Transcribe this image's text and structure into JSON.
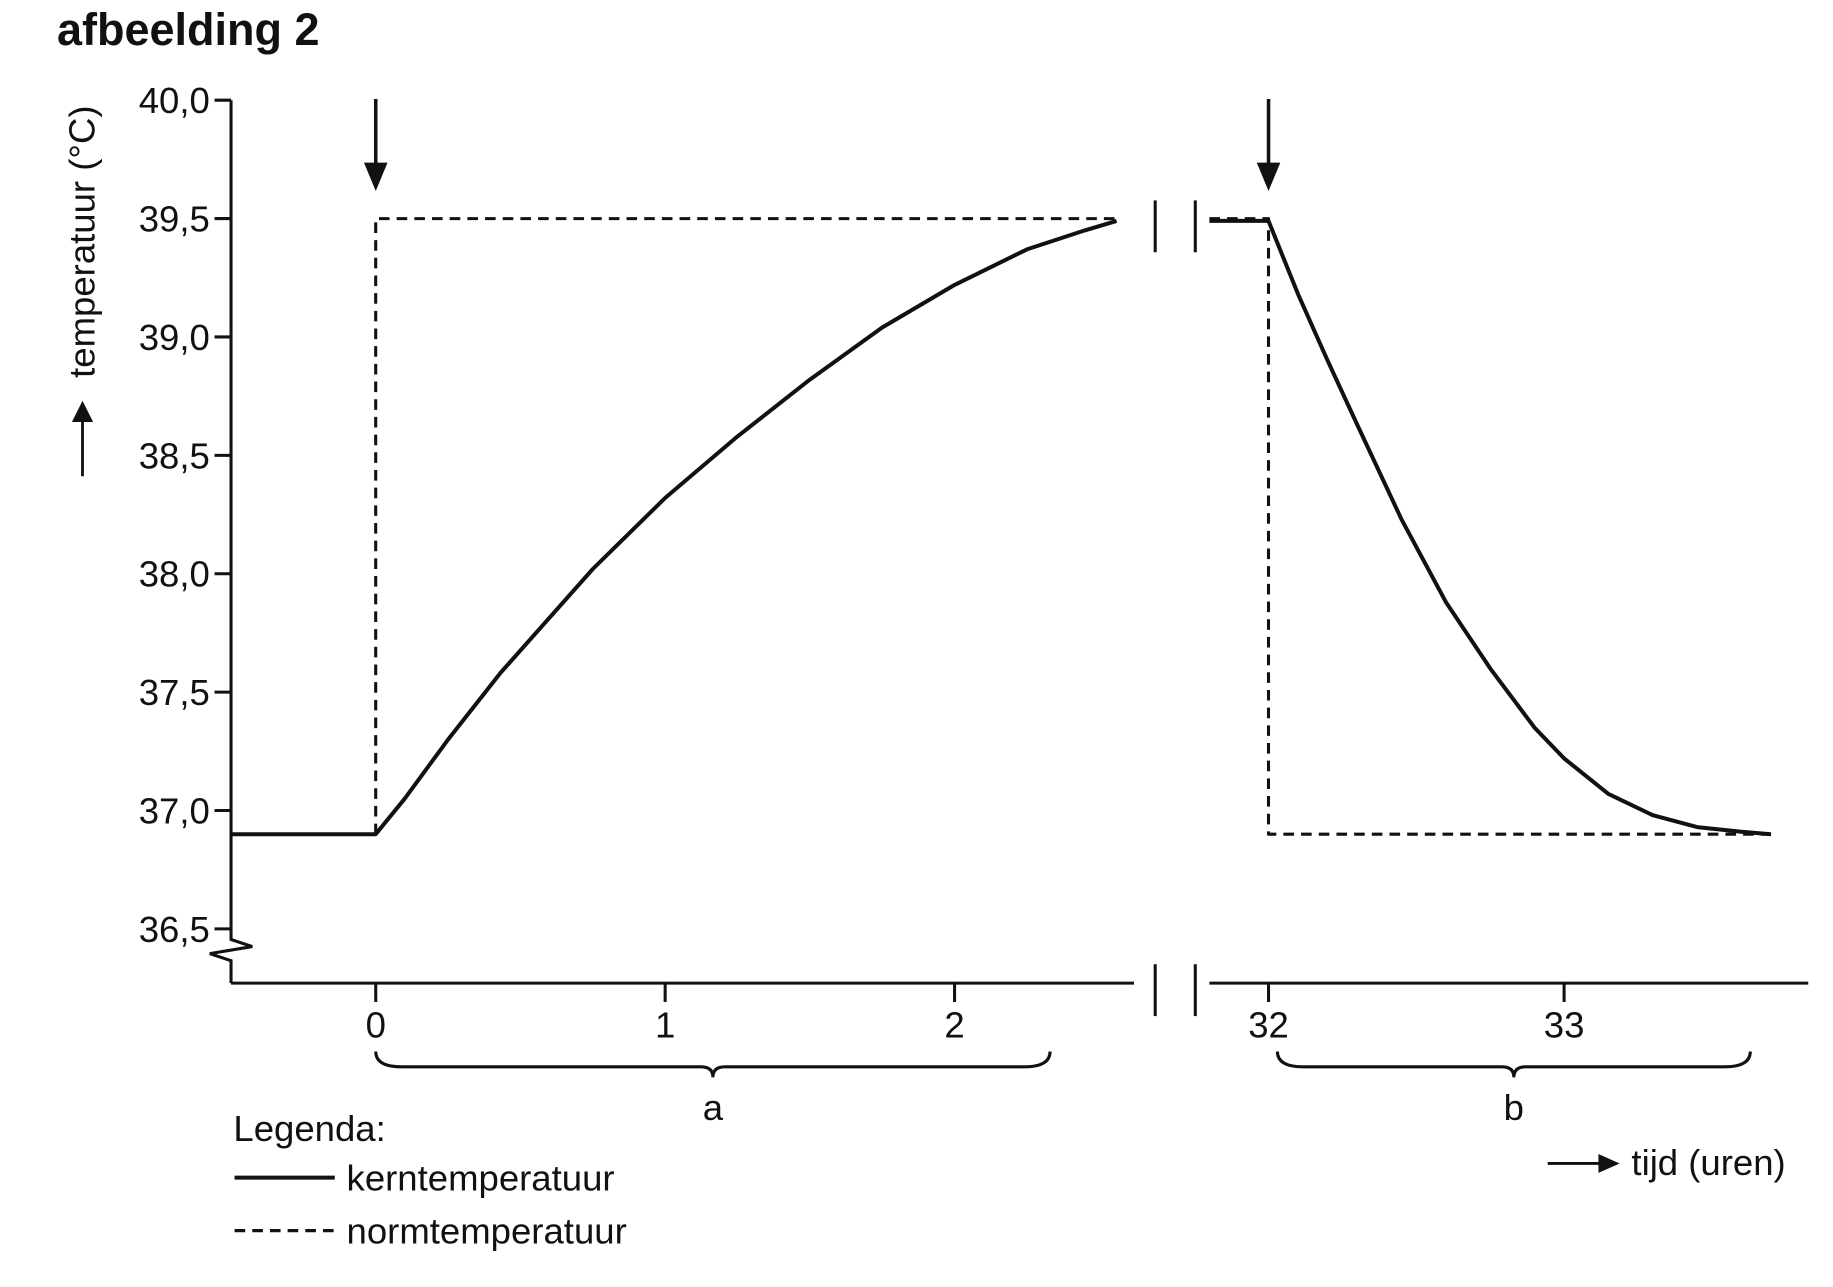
{
  "figure_title": "afbeelding 2",
  "chart_data": {
    "type": "line",
    "ylabel": "temperatuur (°C)",
    "xlabel": "tijd (uren)",
    "ylim": [
      36.5,
      40.0
    ],
    "yticks": [
      "36,5",
      "37,0",
      "37,5",
      "38,0",
      "38,5",
      "39,0",
      "39,5",
      "40,0"
    ],
    "ytick_values": [
      36.5,
      37.0,
      37.5,
      38.0,
      38.5,
      39.0,
      39.5,
      40.0
    ],
    "x_segments": [
      {
        "xlim": [
          -0.5,
          2.62
        ],
        "xticks": [
          "0",
          "1",
          "2"
        ],
        "xtick_values": [
          0,
          1,
          2
        ]
      },
      {
        "xlim": [
          31.8,
          33.85
        ],
        "xticks": [
          "32",
          "33"
        ],
        "xtick_values": [
          32,
          33
        ]
      }
    ],
    "axis_break": "x",
    "grid": false,
    "legend_placement": "bottom-left",
    "legend_title": "Legenda:",
    "series": [
      {
        "name": "kerntemperatuur",
        "style": "solid",
        "segments": [
          [
            [
              -0.5,
              36.9
            ],
            [
              0,
              36.9
            ],
            [
              0.1,
              37.05
            ],
            [
              0.25,
              37.3
            ],
            [
              0.43,
              37.58
            ],
            [
              0.75,
              38.02
            ],
            [
              1.0,
              38.32
            ],
            [
              1.25,
              38.58
            ],
            [
              1.5,
              38.82
            ],
            [
              1.75,
              39.04
            ],
            [
              2.0,
              39.22
            ],
            [
              2.25,
              39.37
            ],
            [
              2.45,
              39.45
            ],
            [
              2.56,
              39.49
            ]
          ],
          [
            [
              31.8,
              39.49
            ],
            [
              32.0,
              39.49
            ],
            [
              32.1,
              39.18
            ],
            [
              32.2,
              38.9
            ],
            [
              32.3,
              38.63
            ],
            [
              32.45,
              38.23
            ],
            [
              32.6,
              37.88
            ],
            [
              32.75,
              37.6
            ],
            [
              32.9,
              37.35
            ],
            [
              33.0,
              37.22
            ],
            [
              33.15,
              37.07
            ],
            [
              33.3,
              36.98
            ],
            [
              33.45,
              36.93
            ],
            [
              33.6,
              36.91
            ],
            [
              33.7,
              36.9
            ]
          ]
        ]
      },
      {
        "name": "normtemperatuur",
        "style": "dashed",
        "segments": [
          [
            [
              0,
              36.9
            ],
            [
              0,
              39.5
            ],
            [
              2.56,
              39.5
            ]
          ],
          [
            [
              31.8,
              39.5
            ],
            [
              32.0,
              39.5
            ],
            [
              32.0,
              36.9
            ],
            [
              33.7,
              36.9
            ]
          ]
        ]
      }
    ],
    "arrows_at": [
      0,
      32
    ],
    "brackets": [
      {
        "label": "a",
        "from": 0,
        "to": 2.33,
        "segment": 0
      },
      {
        "label": "b",
        "from": 32.03,
        "to": 33.63,
        "segment": 1
      }
    ]
  }
}
